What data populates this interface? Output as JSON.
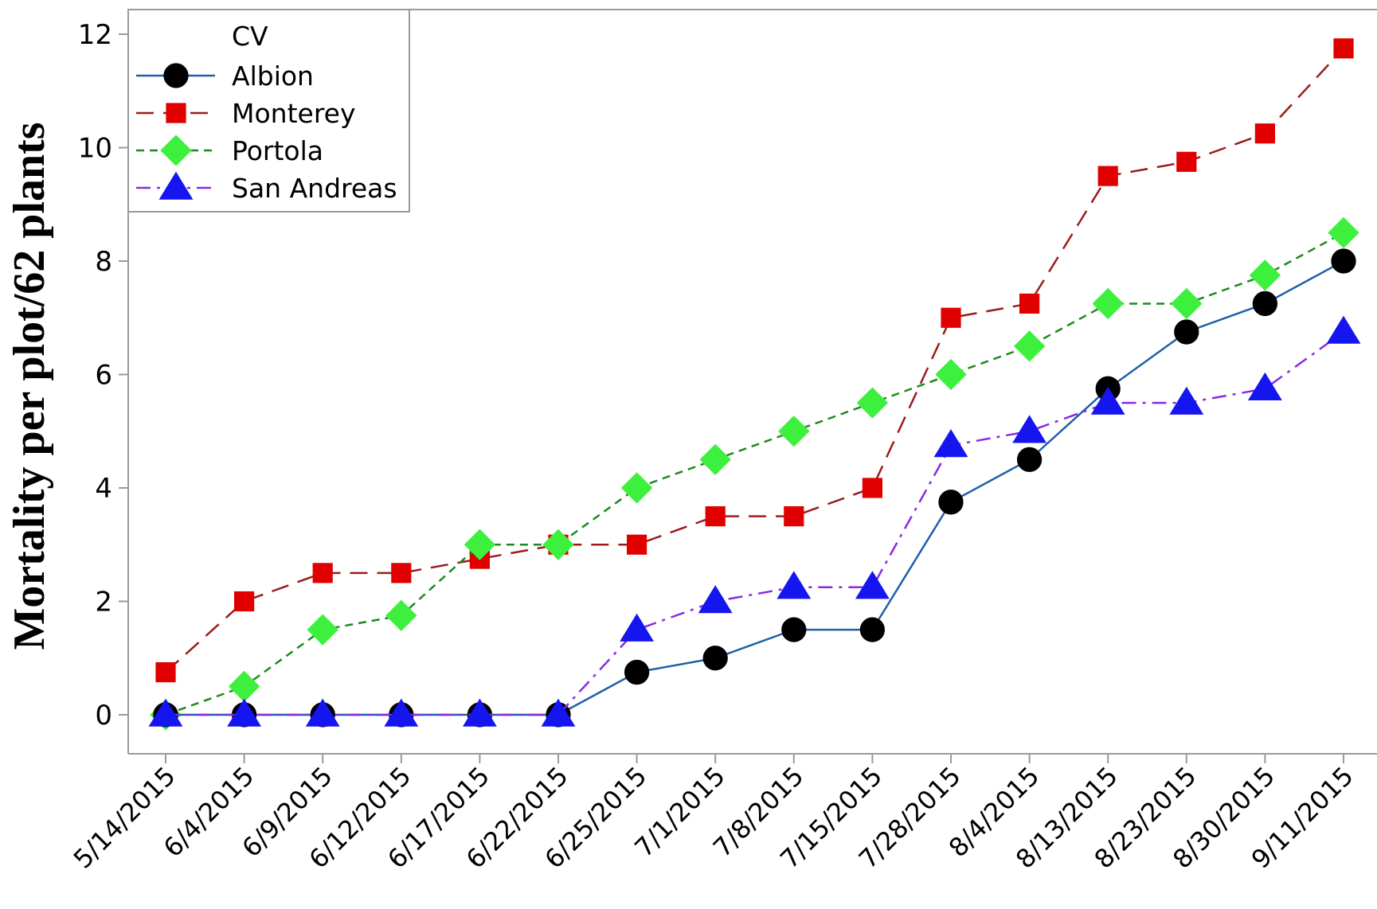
{
  "chart_data": {
    "type": "line",
    "title": "",
    "xlabel": "",
    "ylabel": "Mortality per plot/62 plants",
    "ylim": [
      -0.7,
      12.5
    ],
    "yticks": [
      0,
      2,
      4,
      6,
      8,
      10,
      12
    ],
    "ytick_labels": [
      "0",
      "2",
      "4",
      "6",
      "8",
      "10",
      "12"
    ],
    "grid": false,
    "legend": {
      "title": "CV",
      "placement": "top-left"
    },
    "categories": [
      "5/14/2015",
      "6/4/2015",
      "6/9/2015",
      "6/12/2015",
      "6/17/2015",
      "6/22/2015",
      "6/25/2015",
      "7/1/2015",
      "7/8/2015",
      "7/15/2015",
      "7/28/2015",
      "8/4/2015",
      "8/13/2015",
      "8/23/2015",
      "8/30/2015",
      "9/11/2015"
    ],
    "series": [
      {
        "name": "Albion",
        "color": "#1f5fa8",
        "marker": "circle",
        "marker_color": "#000000",
        "dash": "solid",
        "values": [
          0,
          0,
          0,
          0,
          0,
          0,
          0.75,
          1,
          1.5,
          1.5,
          3.75,
          4.5,
          5.75,
          6.75,
          7.25,
          8
        ]
      },
      {
        "name": "Monterey",
        "color": "#9b1c1c",
        "marker": "square",
        "marker_color": "#e00000",
        "dash": "long-dash",
        "values": [
          0.75,
          2,
          2.5,
          2.5,
          2.75,
          3,
          3,
          3.5,
          3.5,
          4,
          7,
          7.25,
          9.5,
          9.75,
          10.25,
          11.75
        ]
      },
      {
        "name": "Portola",
        "color": "#1e8a1e",
        "marker": "diamond",
        "marker_color": "#3ef03e",
        "dash": "short-dash",
        "values": [
          0,
          0.5,
          1.5,
          1.75,
          3,
          3,
          4,
          4.5,
          5,
          5.5,
          6,
          6.5,
          7.25,
          7.25,
          7.75,
          8.5
        ]
      },
      {
        "name": "San Andreas",
        "color": "#8a2be2",
        "marker": "triangle",
        "marker_color": "#1515f0",
        "dash": "dash-dot",
        "values": [
          0,
          0,
          0,
          0,
          0,
          0,
          1.5,
          2,
          2.25,
          2.25,
          4.75,
          5,
          5.5,
          5.5,
          5.75,
          6.75
        ]
      }
    ]
  }
}
